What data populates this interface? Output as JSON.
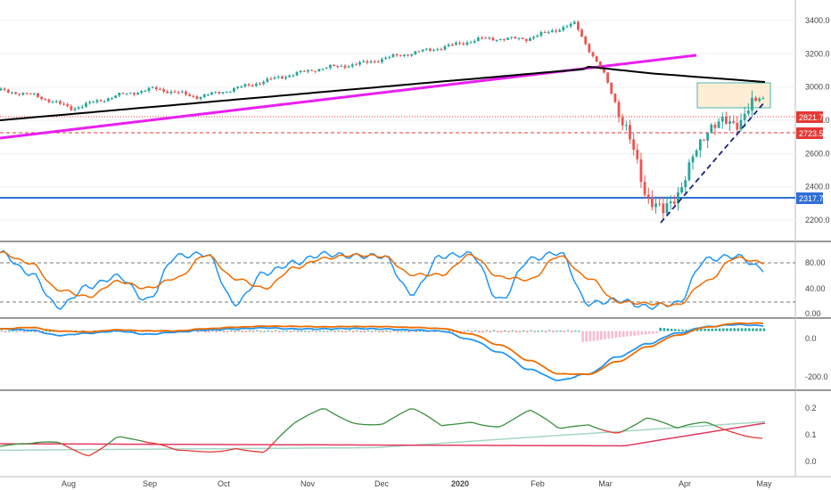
{
  "colors": {
    "up": "#26a69a",
    "down": "#ef5350",
    "ma200": "#000000",
    "trendline": "#e91ef2",
    "support_line": "#2f6fd6",
    "resistance_dashed": "#e53935",
    "dashed_trend": "#1a237e",
    "stoch_k": "#2196f3",
    "stoch_d": "#ef6c00",
    "hist_pos": "#26a69a",
    "hist_neg": "#ef5350",
    "box_fill": "#ffe0b2",
    "box_border": "#4db6ac",
    "osc_green": "#388e3c",
    "osc_red": "#e53935",
    "osc_avg": "#a5d6c4",
    "osc_signal": "#e03a5f"
  },
  "price_axis_labels": [
    "3400.0",
    "3200.0",
    "3000.0",
    "2800.0",
    "2600.0",
    "2400.0",
    "2200.0"
  ],
  "stoch_axis_labels": [
    "80.00",
    "40.00",
    "0.00"
  ],
  "macd_axis_labels": [
    "0.0",
    "-200.0"
  ],
  "osc_axis_labels": [
    "0.2",
    "0.1",
    "0.0"
  ],
  "price_tags": [
    "2821.7",
    "2723.5",
    "2317.7"
  ],
  "time_axis_labels": [
    "Aug",
    "Sep",
    "Oct",
    "Nov",
    "Dec",
    "2020",
    "Feb",
    "Mar",
    "Apr",
    "May"
  ],
  "chart_data": [
    {
      "type": "candlestick",
      "panel": "price",
      "x": [
        "2019-07-19",
        "2019-08-01",
        "2019-08-15",
        "2019-09-01",
        "2019-09-15",
        "2019-10-01",
        "2019-10-15",
        "2019-11-01",
        "2019-11-15",
        "2019-12-01",
        "2019-12-15",
        "2020-01-01",
        "2020-01-15",
        "2020-02-01",
        "2020-02-15",
        "2020-02-19",
        "2020-02-24",
        "2020-03-01",
        "2020-03-09",
        "2020-03-16",
        "2020-03-23",
        "2020-04-01",
        "2020-04-09",
        "2020-04-15",
        "2020-04-20",
        "2020-04-29",
        "2020-04-30"
      ],
      "close": [
        2980,
        2950,
        2870,
        2950,
        2990,
        2940,
        2990,
        3060,
        3110,
        3140,
        3190,
        3240,
        3290,
        3290,
        3360,
        3380,
        3230,
        3070,
        2750,
        2380,
        2230,
        2480,
        2780,
        2770,
        2800,
        2950,
        2890
      ],
      "ylim": [
        2120,
        3480
      ],
      "horizontal_levels": [
        2821.7,
        2723.5,
        2317.7
      ],
      "annotations": [
        "200-day moving average",
        "rising trendline",
        "dashed support trendline",
        "resistance box"
      ]
    },
    {
      "type": "line",
      "panel": "stochastic",
      "ylim": [
        0,
        100
      ],
      "reference_levels": [
        80,
        20
      ],
      "series": [
        {
          "values": [
            90,
            60,
            10,
            40,
            55,
            20,
            85,
            88,
            15,
            60,
            75,
            88,
            85,
            85,
            30,
            85,
            88,
            20,
            80,
            90,
            15,
            20,
            10,
            15,
            80,
            85,
            65
          ]
        }
      ]
    },
    {
      "type": "line",
      "panel": "macd",
      "ylim": [
        -260,
        40
      ],
      "series": [
        {
          "values": [
            10,
            5,
            -20,
            -10,
            0,
            -15,
            -5,
            5,
            10,
            15,
            10,
            10,
            12,
            10,
            5,
            0,
            -40,
            -100,
            -180,
            -230,
            -200,
            -120,
            -60,
            -10,
            20,
            30,
            25
          ]
        }
      ]
    },
    {
      "type": "line",
      "panel": "oscillator",
      "ylim": [
        -0.05,
        0.25
      ],
      "series": [
        {
          "values": [
            0.05,
            0.04,
            0.06,
            0.03,
            0.1,
            0.05,
            0.02,
            0.04,
            0.06,
            0.02,
            0.12,
            0.2,
            0.16,
            0.14,
            0.18,
            0.12,
            0.16,
            0.14,
            0.18,
            0.1,
            0.14,
            0.12,
            0.16,
            0.1,
            0.14,
            0.12,
            0.09
          ]
        }
      ]
    }
  ]
}
